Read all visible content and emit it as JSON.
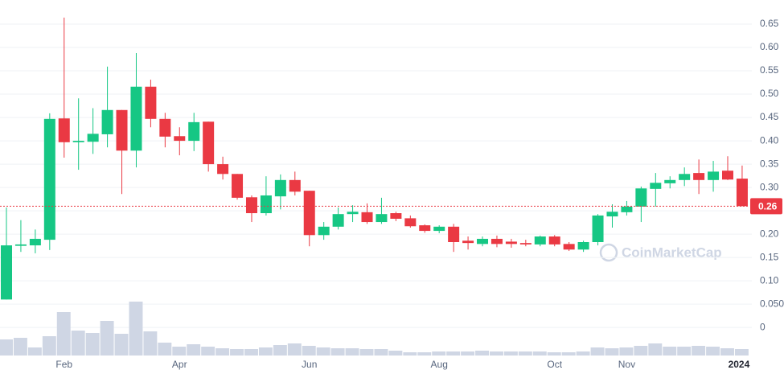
{
  "chart_data": {
    "type": "candlestick",
    "watermark": "CoinMarketCap",
    "categories": [
      null,
      null,
      null,
      null,
      "Feb",
      null,
      null,
      null,
      null,
      null,
      null,
      null,
      "Apr",
      null,
      null,
      null,
      null,
      null,
      null,
      null,
      null,
      "Jun",
      null,
      null,
      null,
      null,
      null,
      null,
      null,
      null,
      "Aug",
      null,
      null,
      null,
      null,
      null,
      null,
      null,
      "Oct",
      null,
      null,
      null,
      null,
      "Nov",
      null,
      null,
      null,
      null,
      null,
      null,
      null,
      "2024"
    ],
    "open": [
      0.06,
      0.175,
      0.176,
      0.188,
      0.448,
      0.397,
      0.398,
      0.414,
      0.466,
      0.379,
      0.516,
      0.447,
      0.41,
      0.4,
      0.441,
      0.35,
      0.329,
      0.279,
      0.245,
      0.281,
      0.316,
      0.293,
      0.198,
      0.216,
      0.243,
      0.247,
      0.226,
      0.245,
      0.234,
      0.219,
      0.207,
      0.216,
      0.186,
      0.179,
      0.19,
      0.184,
      0.181,
      0.178,
      0.195,
      0.179,
      0.167,
      0.183,
      0.238,
      0.247,
      0.259,
      0.297,
      0.309,
      0.316,
      0.331,
      0.316,
      0.336,
      0.319
    ],
    "high": [
      0.257,
      0.23,
      0.21,
      0.459,
      0.664,
      0.491,
      0.47,
      0.559,
      0.466,
      0.588,
      0.531,
      0.46,
      0.429,
      0.46,
      0.441,
      0.366,
      0.329,
      0.283,
      0.324,
      0.328,
      0.334,
      0.293,
      0.226,
      0.257,
      0.262,
      0.266,
      0.278,
      0.248,
      0.24,
      0.221,
      0.219,
      0.222,
      0.195,
      0.195,
      0.197,
      0.19,
      0.188,
      0.197,
      0.198,
      0.183,
      0.186,
      0.243,
      0.264,
      0.271,
      0.302,
      0.331,
      0.324,
      0.343,
      0.36,
      0.357,
      0.367,
      0.347
    ],
    "low": [
      0.06,
      0.162,
      0.159,
      0.166,
      0.364,
      0.338,
      0.372,
      0.386,
      0.286,
      0.343,
      0.429,
      0.386,
      0.369,
      0.378,
      0.334,
      0.317,
      0.274,
      0.226,
      0.24,
      0.253,
      0.283,
      0.174,
      0.188,
      0.21,
      0.226,
      0.222,
      0.222,
      0.228,
      0.214,
      0.203,
      0.202,
      0.162,
      0.167,
      0.174,
      0.172,
      0.171,
      0.174,
      0.174,
      0.174,
      0.164,
      0.162,
      0.176,
      0.214,
      0.24,
      0.226,
      0.259,
      0.298,
      0.303,
      0.286,
      0.291,
      0.316,
      0.26
    ],
    "close": [
      0.176,
      0.178,
      0.19,
      0.447,
      0.397,
      0.4,
      0.415,
      0.466,
      0.379,
      0.516,
      0.447,
      0.409,
      0.4,
      0.44,
      0.35,
      0.329,
      0.278,
      0.245,
      0.283,
      0.316,
      0.291,
      0.198,
      0.216,
      0.243,
      0.248,
      0.226,
      0.243,
      0.233,
      0.217,
      0.207,
      0.216,
      0.183,
      0.181,
      0.19,
      0.179,
      0.179,
      0.178,
      0.195,
      0.178,
      0.167,
      0.183,
      0.24,
      0.248,
      0.259,
      0.298,
      0.31,
      0.316,
      0.329,
      0.316,
      0.334,
      0.317,
      0.26
    ],
    "volume": [
      20,
      22,
      10,
      24,
      54,
      31,
      28,
      43,
      27,
      67,
      30,
      16,
      11,
      14,
      11,
      9,
      8,
      8,
      10,
      13,
      15,
      12,
      10,
      9,
      9,
      8,
      8,
      6,
      4,
      4,
      5,
      5,
      5,
      6,
      5,
      5,
      5,
      5,
      4,
      4,
      5,
      10,
      9,
      10,
      12,
      15,
      11,
      11,
      12,
      11,
      9,
      8
    ],
    "up_color": "#16c784",
    "down_color": "#ea3943",
    "volume_color": "#cfd6e4",
    "last_price": 0.26,
    "ylim": [
      -0.06,
      0.7
    ],
    "yticks": [
      0,
      {
        "value": 0.05,
        "label": "0.050"
      },
      {
        "value": 0.1,
        "label": "0.10"
      },
      0.15,
      {
        "value": 0.2,
        "label": "0.20"
      },
      0.25,
      {
        "value": 0.3,
        "label": "0.30"
      },
      0.35,
      {
        "value": 0.4,
        "label": "0.40"
      },
      0.45,
      {
        "value": 0.5,
        "label": "0.50"
      },
      0.55,
      {
        "value": 0.6,
        "label": "0.60"
      },
      0.65
    ],
    "grid": true
  }
}
